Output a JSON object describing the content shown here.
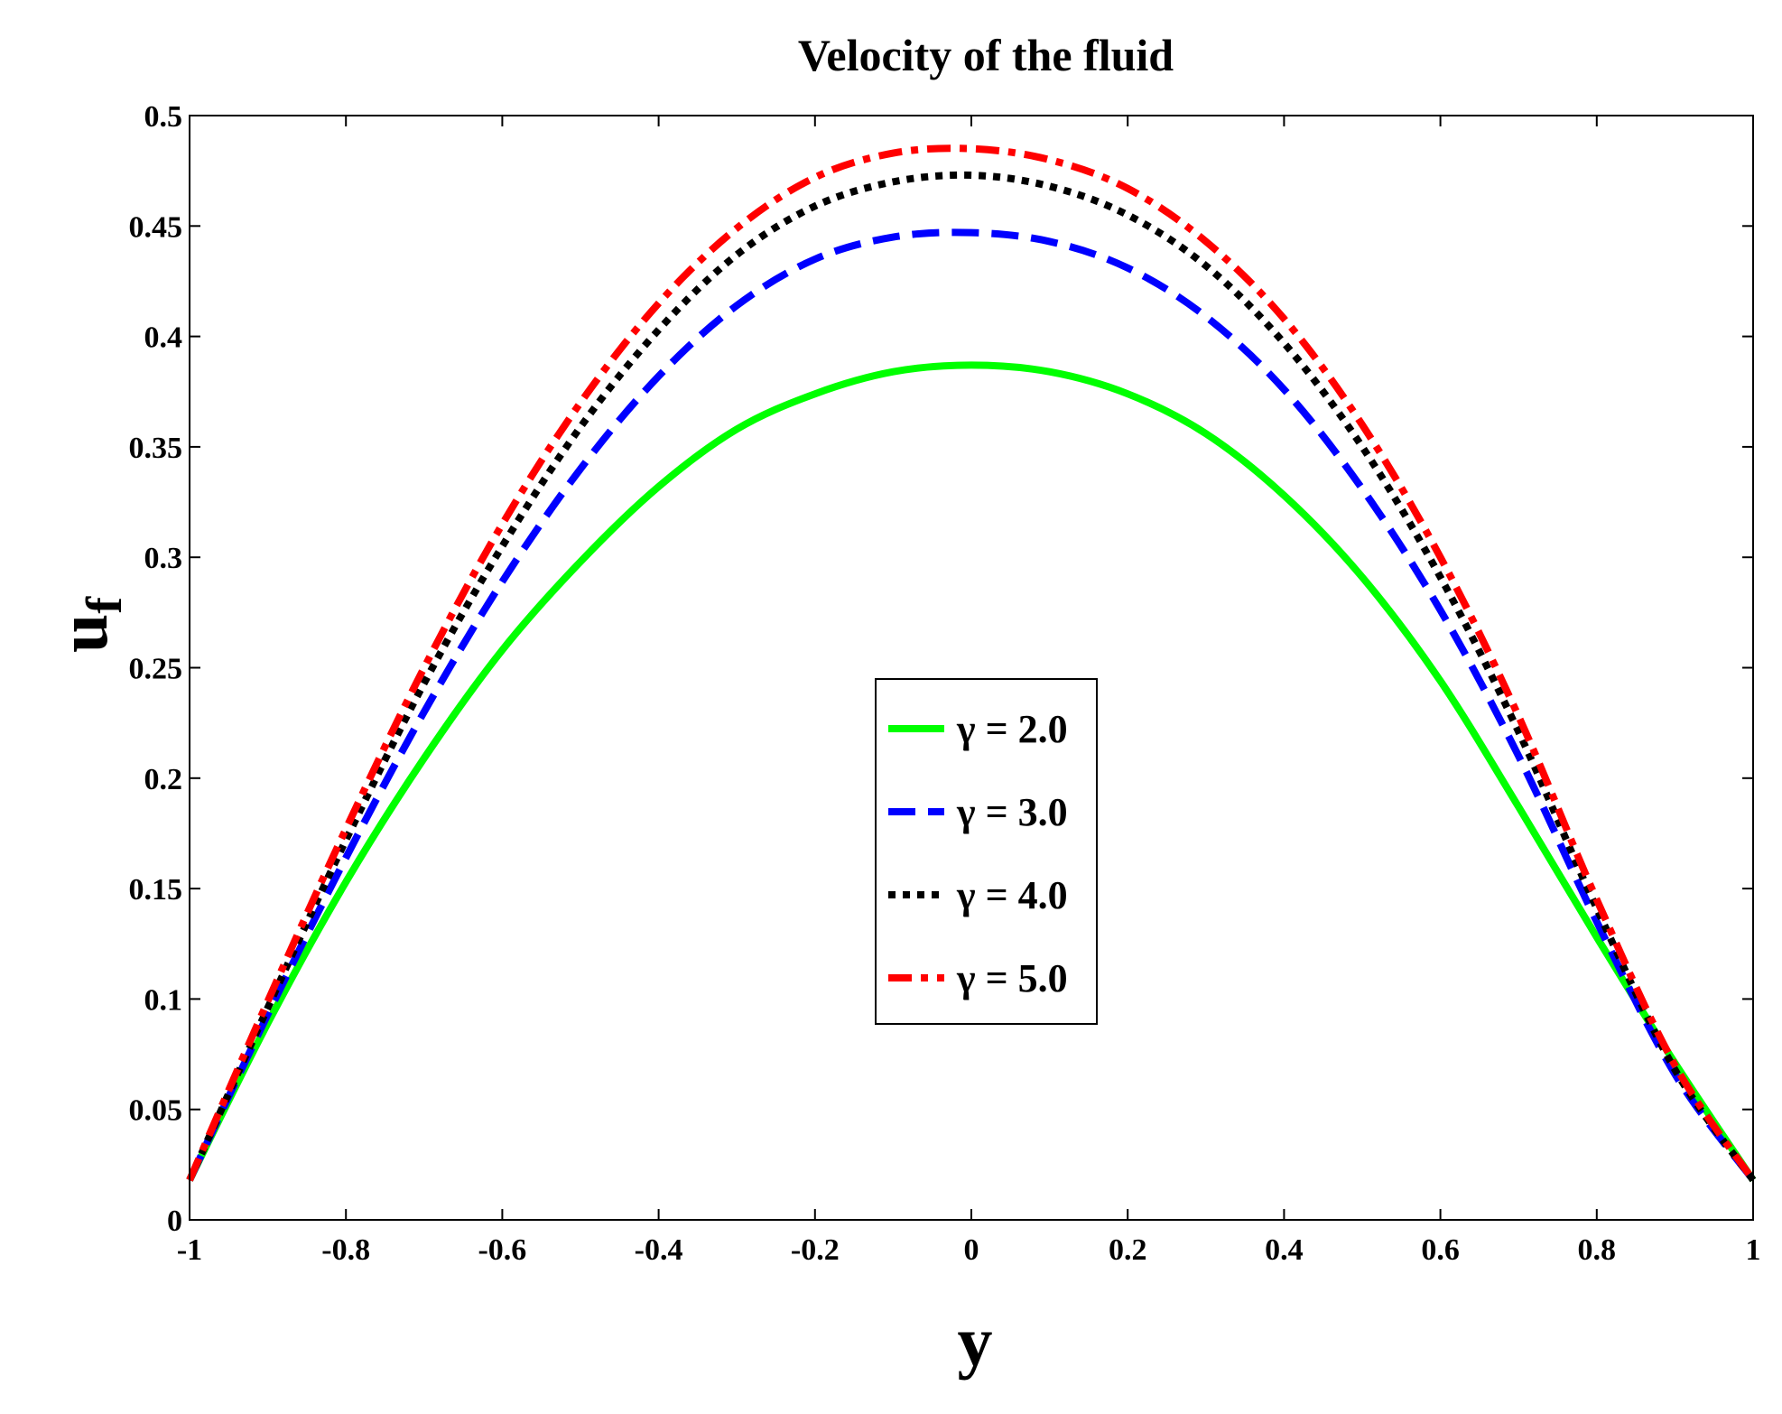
{
  "chart_data": {
    "type": "line",
    "title": "Velocity of the fluid",
    "xlabel": "y",
    "ylabel": {
      "base": "u",
      "subscript": "f"
    },
    "xlim": [
      -1,
      1
    ],
    "ylim": [
      0,
      0.5
    ],
    "x_ticks": [
      "-1",
      "-0.8",
      "-0.6",
      "-0.4",
      "-0.2",
      "0",
      "0.2",
      "0.4",
      "0.6",
      "0.8",
      "1"
    ],
    "y_ticks": [
      "0",
      "0.05",
      "0.1",
      "0.15",
      "0.2",
      "0.25",
      "0.3",
      "0.35",
      "0.4",
      "0.45",
      "0.5"
    ],
    "grid": false,
    "legend_position": "center",
    "x": [
      -1,
      -0.9,
      -0.8,
      -0.7,
      -0.6,
      -0.5,
      -0.4,
      -0.3,
      -0.2,
      -0.1,
      0,
      0.1,
      0.2,
      0.3,
      0.4,
      0.5,
      0.6,
      0.7,
      0.8,
      0.9,
      1
    ],
    "series": [
      {
        "name": "γ = 2.0",
        "color": "#00ff00",
        "style": "solid",
        "values": [
          0.018,
          0.089,
          0.153,
          0.209,
          0.258,
          0.298,
          0.332,
          0.358,
          0.374,
          0.384,
          0.387,
          0.384,
          0.374,
          0.356,
          0.328,
          0.291,
          0.244,
          0.187,
          0.128,
          0.071,
          0.018
        ]
      },
      {
        "name": "γ = 3.0",
        "color": "#0000ff",
        "style": "dashed",
        "values": [
          0.018,
          0.093,
          0.164,
          0.23,
          0.289,
          0.34,
          0.382,
          0.414,
          0.435,
          0.445,
          0.447,
          0.443,
          0.431,
          0.409,
          0.376,
          0.331,
          0.276,
          0.21,
          0.135,
          0.066,
          0.018
        ]
      },
      {
        "name": "γ = 4.0",
        "color": "#000000",
        "style": "dotted",
        "values": [
          0.018,
          0.096,
          0.172,
          0.243,
          0.305,
          0.359,
          0.403,
          0.437,
          0.459,
          0.47,
          0.473,
          0.468,
          0.455,
          0.432,
          0.397,
          0.35,
          0.291,
          0.221,
          0.141,
          0.068,
          0.018
        ]
      },
      {
        "name": "γ = 5.0",
        "color": "#ff0000",
        "style": "dashdot",
        "values": [
          0.018,
          0.099,
          0.177,
          0.25,
          0.315,
          0.37,
          0.415,
          0.449,
          0.472,
          0.483,
          0.485,
          0.48,
          0.467,
          0.443,
          0.408,
          0.36,
          0.3,
          0.228,
          0.145,
          0.07,
          0.018
        ]
      }
    ]
  }
}
